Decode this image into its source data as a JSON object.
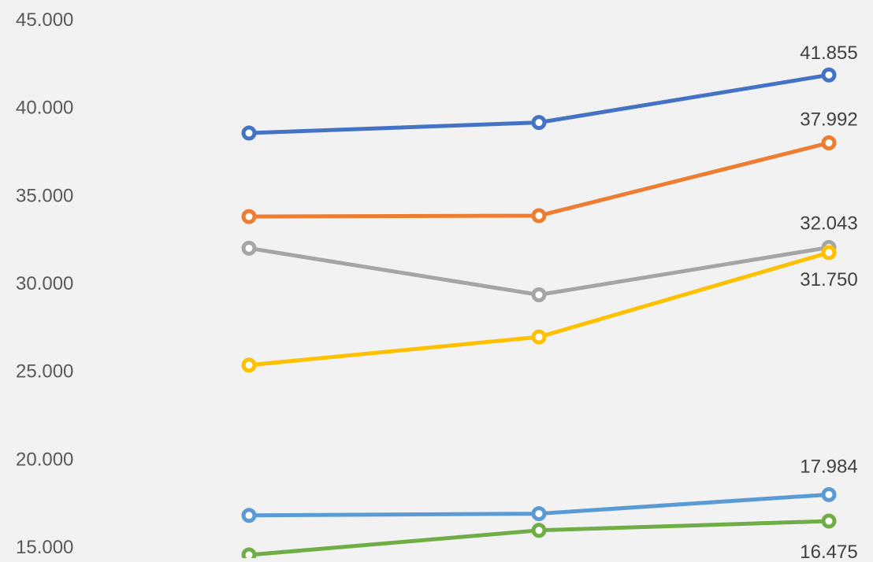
{
  "chart_data": {
    "type": "line",
    "title": "",
    "xlabel": "",
    "ylabel": "",
    "categories": [
      "",
      "",
      ""
    ],
    "ylim": [
      15000,
      45000
    ],
    "yticks": [
      15000,
      20000,
      25000,
      30000,
      35000,
      40000,
      45000
    ],
    "ytick_labels": [
      "15.000",
      "20.000",
      "25.000",
      "30.000",
      "35.000",
      "40.000",
      "45.000"
    ],
    "grid": false,
    "legend": "none",
    "markers": "hollow circles",
    "series": [
      {
        "color": "#4472c4",
        "values": [
          38550,
          39150,
          41855
        ],
        "end_label": "41.855"
      },
      {
        "color": "#ed7d31",
        "values": [
          33800,
          33850,
          37992
        ],
        "end_label": "37.992"
      },
      {
        "color": "#a5a5a5",
        "values": [
          32000,
          29350,
          32043
        ],
        "end_label": "32.043"
      },
      {
        "color": "#ffc000",
        "values": [
          25350,
          26950,
          31750
        ],
        "end_label": "31.750"
      },
      {
        "color": "#5b9bd5",
        "values": [
          16800,
          16900,
          17984
        ],
        "end_label": "17.984"
      },
      {
        "color": "#70ad47",
        "values": [
          14550,
          15950,
          16475
        ],
        "end_label": "16.475"
      }
    ]
  }
}
